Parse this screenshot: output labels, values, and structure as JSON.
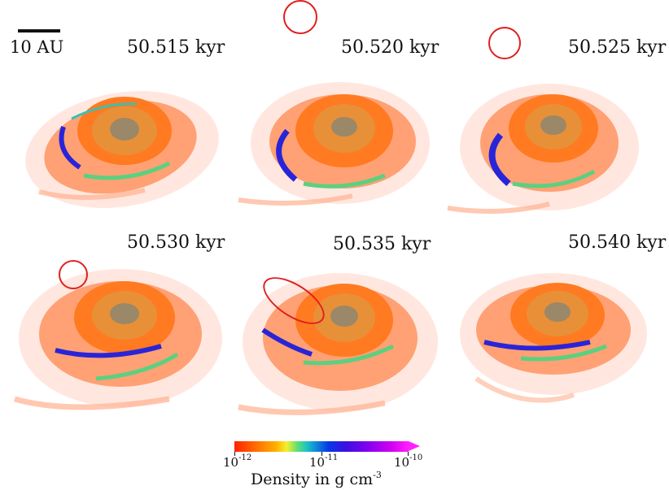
{
  "figure": {
    "scale_bar_label": "10 AU",
    "panels": [
      {
        "time": "50.515 kyr"
      },
      {
        "time": "50.520 kyr"
      },
      {
        "time": "50.525 kyr"
      },
      {
        "time": "50.530 kyr"
      },
      {
        "time": "50.535 kyr"
      },
      {
        "time": "50.540 kyr"
      }
    ],
    "colorbar": {
      "ticks": [
        {
          "base": "10",
          "exp": "-12"
        },
        {
          "base": "10",
          "exp": "-11"
        },
        {
          "base": "10",
          "exp": "-10"
        }
      ],
      "title": "Density in g cm",
      "title_exp": "-3"
    },
    "colors": {
      "marker": "#e0201e",
      "low_density": "#ff4a10",
      "mid_density": "#48d080",
      "high_density": "#2418d8"
    }
  }
}
